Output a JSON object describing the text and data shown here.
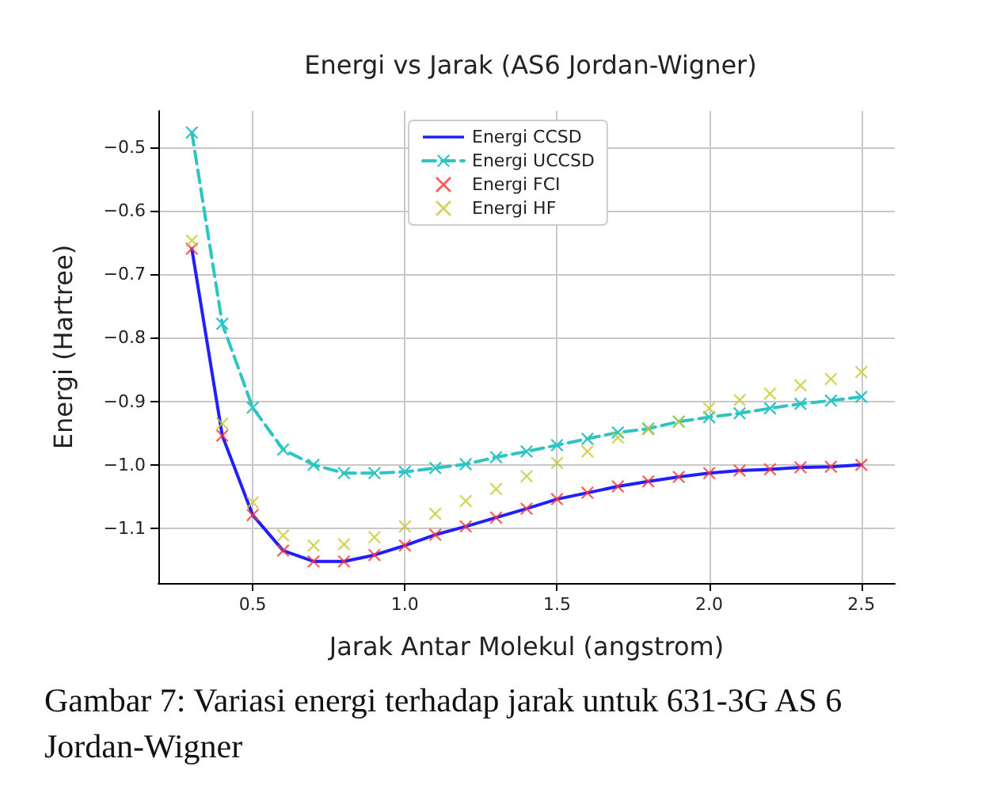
{
  "chart_data": {
    "type": "line",
    "title": "Energi vs Jarak (AS6 Jordan-Wigner)",
    "xlabel": "Jarak Antar Molekul (angstrom)",
    "ylabel": "Energi (Hartree)",
    "x": [
      0.3,
      0.4,
      0.5,
      0.6,
      0.7,
      0.8,
      0.9,
      1.0,
      1.1,
      1.2,
      1.3,
      1.4,
      1.5,
      1.6,
      1.7,
      1.8,
      1.9,
      2.0,
      2.1,
      2.2,
      2.3,
      2.4,
      2.5
    ],
    "series": [
      {
        "name": "Energi CCSD",
        "color": "#1f1fff",
        "line_style": "solid",
        "marker": "none",
        "values": [
          -0.66,
          -0.954,
          -1.079,
          -1.135,
          -1.152,
          -1.152,
          -1.142,
          -1.127,
          -1.11,
          -1.097,
          -1.083,
          -1.069,
          -1.054,
          -1.044,
          -1.034,
          -1.026,
          -1.019,
          -1.013,
          -1.009,
          -1.007,
          -1.004,
          -1.003,
          -1.0
        ]
      },
      {
        "name": "Energi UCCSD",
        "color": "#2ec4c4",
        "line_style": "dashed",
        "marker": "cross",
        "values": [
          -0.477,
          -0.778,
          -0.91,
          -0.976,
          -1.0,
          -1.013,
          -1.013,
          -1.011,
          -1.005,
          -0.999,
          -0.988,
          -0.979,
          -0.969,
          -0.959,
          -0.949,
          -0.943,
          -0.932,
          -0.925,
          -0.919,
          -0.911,
          -0.904,
          -0.899,
          -0.893
        ]
      },
      {
        "name": "Energi FCI",
        "type": "scatter",
        "color": "#ff3333",
        "marker": "cross",
        "values": [
          -0.66,
          -0.954,
          -1.079,
          -1.135,
          -1.152,
          -1.152,
          -1.142,
          -1.127,
          -1.11,
          -1.097,
          -1.083,
          -1.069,
          -1.054,
          -1.044,
          -1.034,
          -1.026,
          -1.019,
          -1.013,
          -1.009,
          -1.007,
          -1.004,
          -1.003,
          -1.0
        ]
      },
      {
        "name": "Energi HF",
        "type": "scatter",
        "color": "#c8c832",
        "marker": "cross",
        "values": [
          -0.647,
          -0.935,
          -1.059,
          -1.111,
          -1.127,
          -1.125,
          -1.114,
          -1.097,
          -1.077,
          -1.057,
          -1.038,
          -1.018,
          -0.997,
          -0.979,
          -0.957,
          -0.944,
          -0.932,
          -0.911,
          -0.898,
          -0.888,
          -0.875,
          -0.865,
          -0.854
        ]
      }
    ],
    "xlim": [
      0.19,
      2.61
    ],
    "xticks": [
      0.5,
      {
        "value": 1,
        "label": "1.0"
      },
      1.5,
      {
        "value": 2,
        "label": "2.0"
      },
      2.5
    ],
    "ylim": [
      -1.186,
      -0.443
    ],
    "yticks": [
      -1.1,
      {
        "value": -1,
        "label": "−1.0"
      },
      -0.9,
      -0.8,
      -0.7,
      -0.6,
      -0.5
    ],
    "grid": true,
    "legend": "top",
    "annotations": [
      "Gambar 7: Variasi energi terhadap jarak untuk 631-3G AS 6 Jordan-Wigner"
    ]
  }
}
